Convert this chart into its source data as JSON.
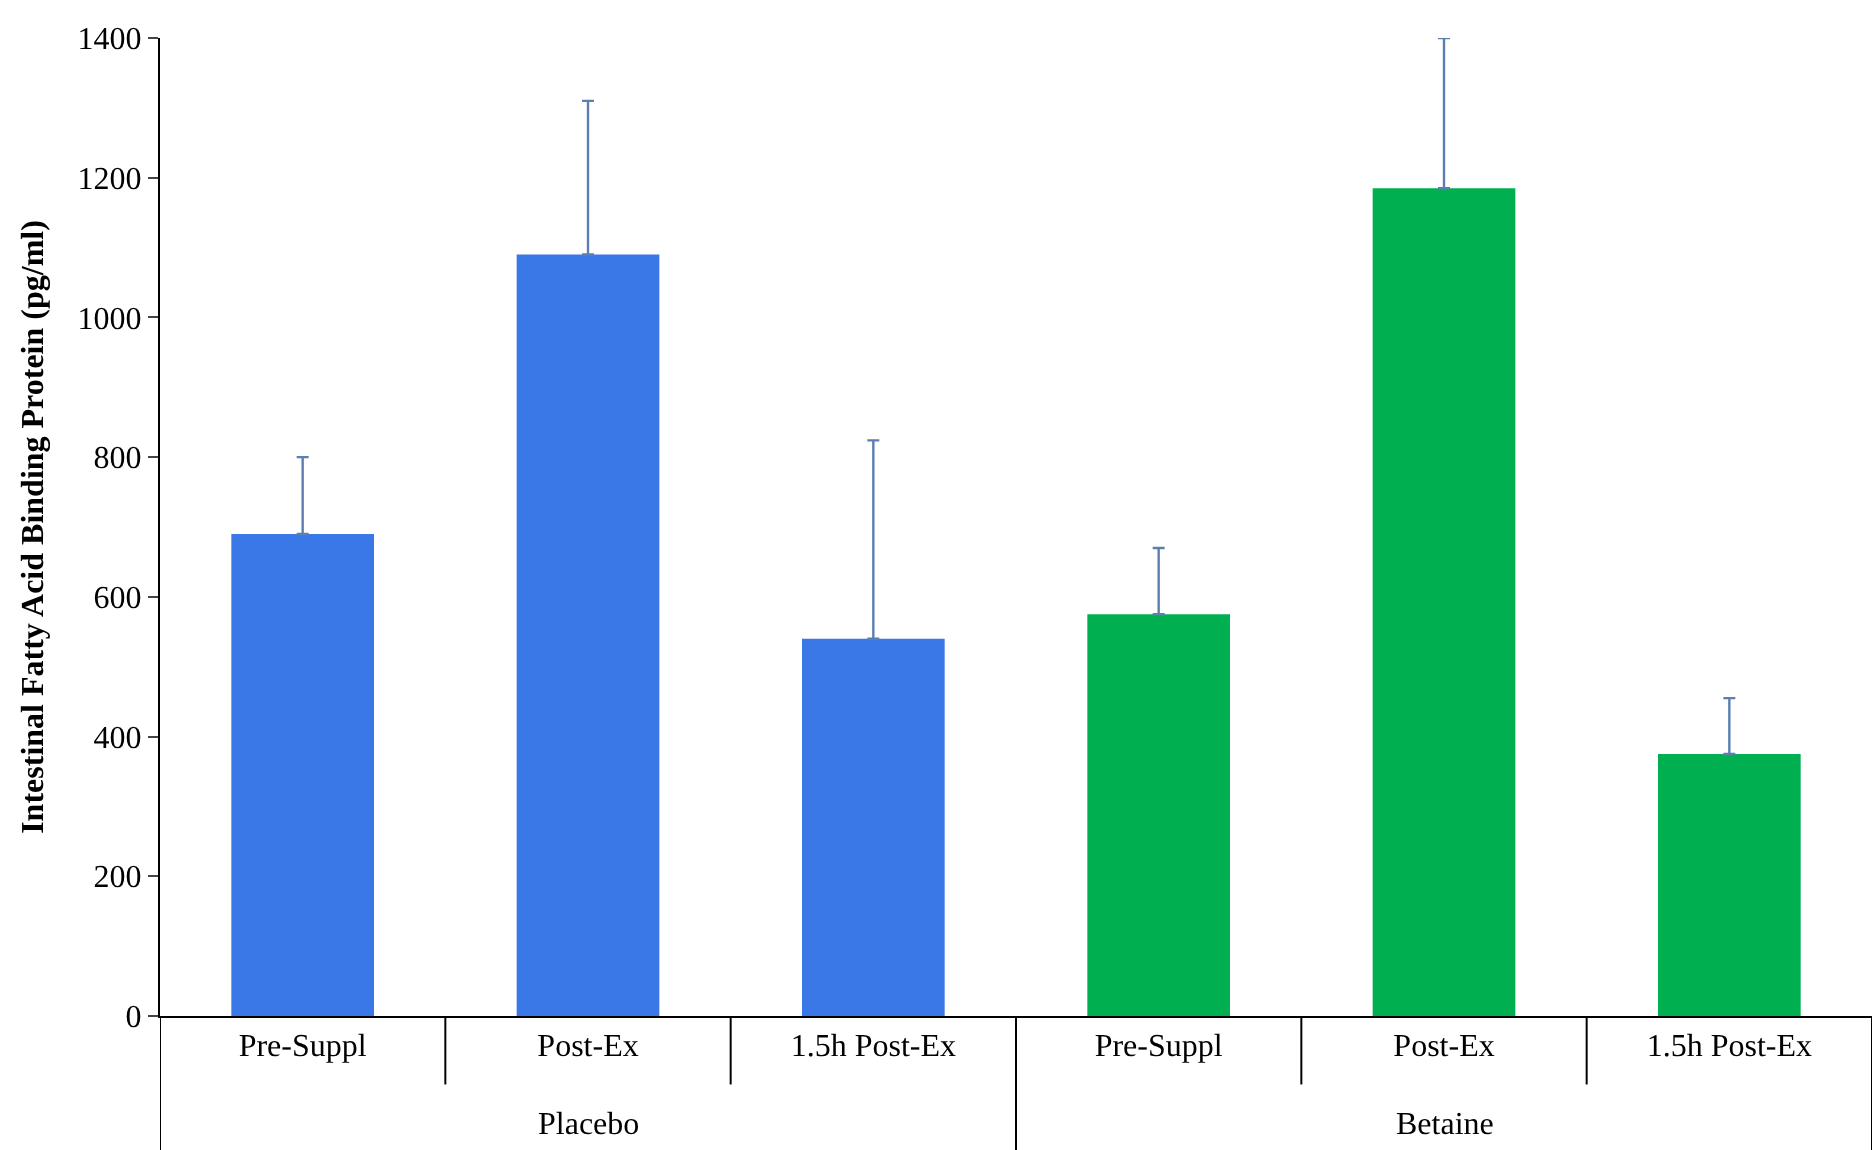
{
  "chart_data": {
    "type": "bar",
    "ylabel": "Intestinal Fatty Acid Binding Protein (pg/ml)",
    "categories": [
      "Pre-Suppl",
      "Post-Ex",
      "1.5h Post-Ex",
      "Pre-Suppl",
      "Post-Ex",
      "1.5h Post-Ex"
    ],
    "values": [
      690,
      1090,
      540,
      575,
      1185,
      375
    ],
    "colors": [
      "#3b78e7",
      "#3b78e7",
      "#3b78e7",
      "#00b050",
      "#00b050",
      "#00b050"
    ],
    "errors": [
      [
        690,
        800
      ],
      [
        1090,
        1310
      ],
      [
        540,
        824
      ],
      [
        575,
        670
      ],
      [
        1185,
        1400
      ],
      [
        375,
        455
      ]
    ],
    "annotations": [
      "Placebo",
      "Betaine"
    ],
    "ylim": [
      0,
      1400
    ],
    "yticks": [
      0,
      200,
      400,
      600,
      800,
      1000,
      1200,
      1400
    ],
    "grid": false,
    "legend": false
  }
}
